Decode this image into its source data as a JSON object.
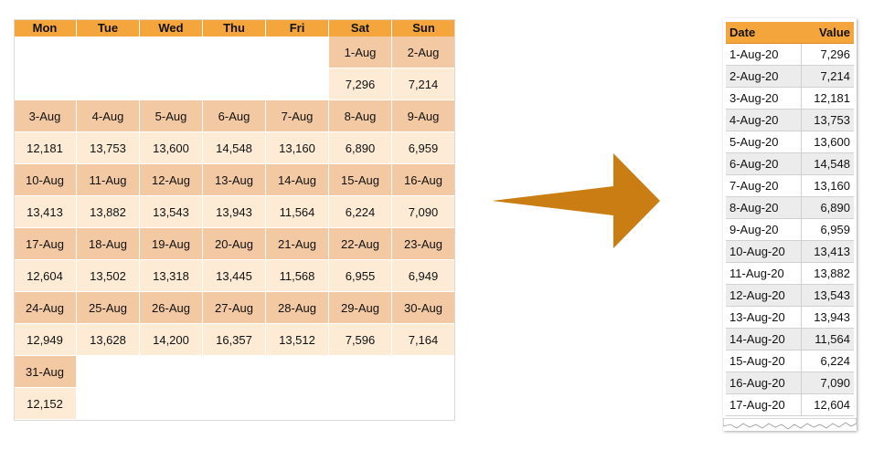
{
  "calendar": {
    "days": [
      "Mon",
      "Tue",
      "Wed",
      "Thu",
      "Fri",
      "Sat",
      "Sun"
    ],
    "weeks": [
      {
        "dates": [
          "",
          "",
          "",
          "",
          "",
          "1-Aug",
          "2-Aug"
        ],
        "values": [
          "",
          "",
          "",
          "",
          "",
          "7,296",
          "7,214"
        ]
      },
      {
        "dates": [
          "3-Aug",
          "4-Aug",
          "5-Aug",
          "6-Aug",
          "7-Aug",
          "8-Aug",
          "9-Aug"
        ],
        "values": [
          "12,181",
          "13,753",
          "13,600",
          "14,548",
          "13,160",
          "6,890",
          "6,959"
        ]
      },
      {
        "dates": [
          "10-Aug",
          "11-Aug",
          "12-Aug",
          "13-Aug",
          "14-Aug",
          "15-Aug",
          "16-Aug"
        ],
        "values": [
          "13,413",
          "13,882",
          "13,543",
          "13,943",
          "11,564",
          "6,224",
          "7,090"
        ]
      },
      {
        "dates": [
          "17-Aug",
          "18-Aug",
          "19-Aug",
          "20-Aug",
          "21-Aug",
          "22-Aug",
          "23-Aug"
        ],
        "values": [
          "12,604",
          "13,502",
          "13,318",
          "13,445",
          "11,568",
          "6,955",
          "6,949"
        ]
      },
      {
        "dates": [
          "24-Aug",
          "25-Aug",
          "26-Aug",
          "27-Aug",
          "28-Aug",
          "29-Aug",
          "30-Aug"
        ],
        "values": [
          "12,949",
          "13,628",
          "14,200",
          "16,357",
          "13,512",
          "7,596",
          "7,164"
        ]
      },
      {
        "dates": [
          "31-Aug",
          "",
          "",
          "",
          "",
          "",
          ""
        ],
        "values": [
          "12,152",
          "",
          "",
          "",
          "",
          "",
          ""
        ]
      }
    ]
  },
  "table": {
    "headers": {
      "date": "Date",
      "value": "Value"
    },
    "rows": [
      {
        "date": "1-Aug-20",
        "value": "7,296"
      },
      {
        "date": "2-Aug-20",
        "value": "7,214"
      },
      {
        "date": "3-Aug-20",
        "value": "12,181"
      },
      {
        "date": "4-Aug-20",
        "value": "13,753"
      },
      {
        "date": "5-Aug-20",
        "value": "13,600"
      },
      {
        "date": "6-Aug-20",
        "value": "14,548"
      },
      {
        "date": "7-Aug-20",
        "value": "13,160"
      },
      {
        "date": "8-Aug-20",
        "value": "6,890"
      },
      {
        "date": "9-Aug-20",
        "value": "6,959"
      },
      {
        "date": "10-Aug-20",
        "value": "13,413"
      },
      {
        "date": "11-Aug-20",
        "value": "13,882"
      },
      {
        "date": "12-Aug-20",
        "value": "13,543"
      },
      {
        "date": "13-Aug-20",
        "value": "13,943"
      },
      {
        "date": "14-Aug-20",
        "value": "11,564"
      },
      {
        "date": "15-Aug-20",
        "value": "6,224"
      },
      {
        "date": "16-Aug-20",
        "value": "7,090"
      },
      {
        "date": "17-Aug-20",
        "value": "12,604"
      }
    ]
  },
  "colors": {
    "header": "#f4a53c",
    "date_cell": "#f3c9a3",
    "value_cell": "#fdebd5",
    "arrow": "#c97d12",
    "row_alt": "#ececec"
  },
  "icons": {
    "arrow": "arrow-right-icon"
  }
}
